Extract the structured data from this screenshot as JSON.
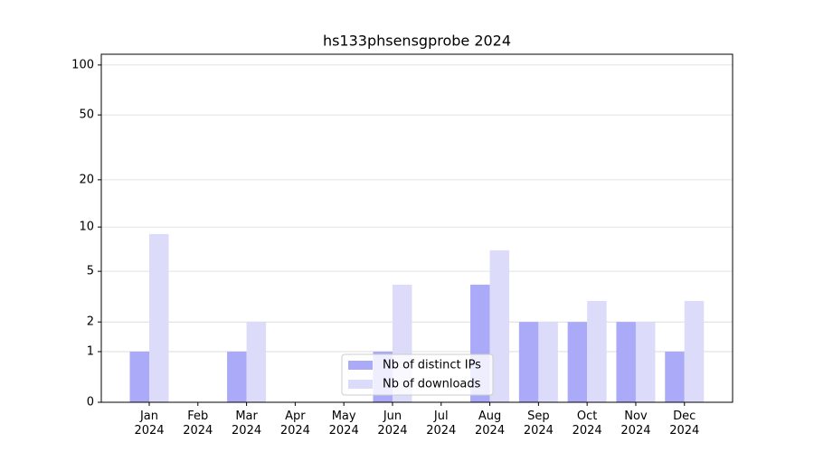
{
  "chart_data": {
    "type": "bar",
    "title": "hs133phsensgprobe 2024",
    "categories": [
      "Jan 2024",
      "Feb 2024",
      "Mar 2024",
      "Apr 2024",
      "May 2024",
      "Jun 2024",
      "Jul 2024",
      "Aug 2024",
      "Sep 2024",
      "Oct 2024",
      "Nov 2024",
      "Dec 2024"
    ],
    "series": [
      {
        "name": "Nb of distinct IPs",
        "color": "#aaaaf8",
        "values": [
          1,
          0,
          1,
          0,
          0,
          1,
          0,
          4,
          2,
          2,
          2,
          1
        ]
      },
      {
        "name": "Nb of downloads",
        "color": "#dcdcfa",
        "values": [
          9,
          0,
          2,
          0,
          0,
          4,
          0,
          7,
          2,
          3,
          2,
          3
        ]
      }
    ],
    "yscale": "log1p",
    "ylim": [
      0,
      116
    ],
    "yticks": [
      0,
      1,
      2,
      5,
      10,
      20,
      50,
      100
    ],
    "grid": true,
    "legend": "lower center"
  }
}
